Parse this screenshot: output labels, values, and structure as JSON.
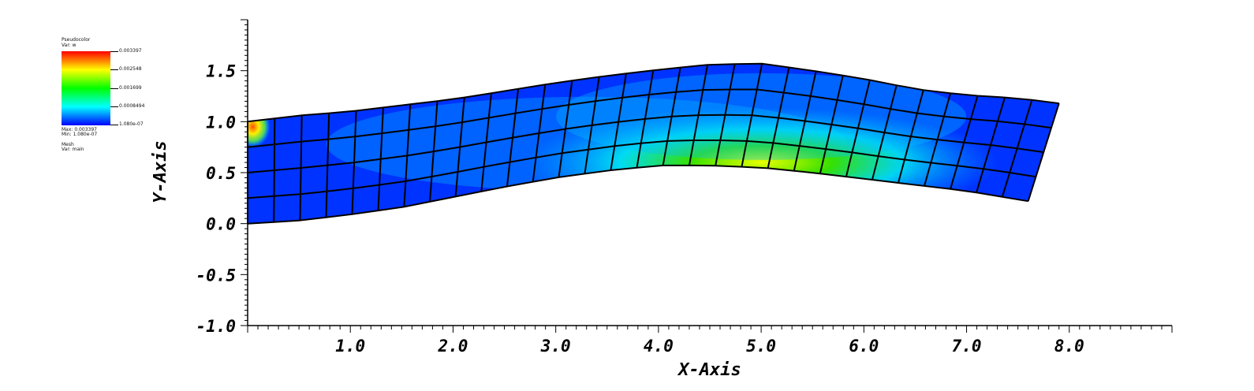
{
  "legend": {
    "plot_type": "Pseudocolor",
    "var": "Var: w",
    "max": "Max: 0.003397",
    "min": "Min: 1.080e-07",
    "mesh_title": "Mesh",
    "mesh_var": "Var: main",
    "colorbar_labels": [
      "0.003397",
      "0.002548",
      "0.001699",
      "0.0008494",
      "1.080e-07"
    ],
    "colormap": [
      "#ff0000",
      "#ffff00",
      "#00ff00",
      "#00ffff",
      "#0000ff"
    ]
  },
  "chart_data": {
    "type": "heatmap",
    "subtype": "pseudocolor-mesh",
    "xlabel": "X-Axis",
    "ylabel": "Y-Axis",
    "xlim": [
      0.0,
      9.0
    ],
    "ylim": [
      -1.0,
      2.0
    ],
    "x_ticks": [
      1.0,
      2.0,
      3.0,
      4.0,
      5.0,
      6.0,
      7.0,
      8.0
    ],
    "x_tick_labels": [
      "1.0",
      "2.0",
      "3.0",
      "4.0",
      "5.0",
      "6.0",
      "7.0",
      "8.0"
    ],
    "y_ticks": [
      -1.0,
      -0.5,
      0.0,
      0.5,
      1.0,
      1.5
    ],
    "y_tick_labels": [
      "-1.0",
      "-0.5",
      "0.0",
      "0.5",
      "1.0",
      "1.5"
    ],
    "variable": "w",
    "value_range": [
      1.08e-07,
      0.003397
    ],
    "mesh": {
      "name": "main",
      "columns": 30,
      "rows": 4,
      "bottom_edge": [
        [
          0.0,
          0.0
        ],
        [
          0.5,
          0.03
        ],
        [
          1.0,
          0.09
        ],
        [
          1.5,
          0.16
        ],
        [
          2.0,
          0.26
        ],
        [
          2.5,
          0.36
        ],
        [
          3.0,
          0.45
        ],
        [
          3.5,
          0.52
        ],
        [
          4.0,
          0.57
        ],
        [
          4.5,
          0.57
        ],
        [
          5.0,
          0.55
        ],
        [
          5.5,
          0.5
        ],
        [
          6.0,
          0.44
        ],
        [
          6.5,
          0.38
        ],
        [
          7.0,
          0.32
        ],
        [
          7.6,
          0.22
        ]
      ],
      "top_edge": [
        [
          0.0,
          1.0
        ],
        [
          0.5,
          1.06
        ],
        [
          1.0,
          1.1
        ],
        [
          1.5,
          1.16
        ],
        [
          2.0,
          1.22
        ],
        [
          2.5,
          1.3
        ],
        [
          3.0,
          1.38
        ],
        [
          3.5,
          1.45
        ],
        [
          4.0,
          1.51
        ],
        [
          4.5,
          1.56
        ],
        [
          5.0,
          1.57
        ],
        [
          5.5,
          1.5
        ],
        [
          6.0,
          1.42
        ],
        [
          6.5,
          1.32
        ],
        [
          7.0,
          1.26
        ],
        [
          7.5,
          1.23
        ],
        [
          7.9,
          1.18
        ]
      ],
      "peak_value_location": [
        5.0,
        0.6
      ],
      "corner_hotspot": [
        0.05,
        0.95
      ]
    }
  }
}
